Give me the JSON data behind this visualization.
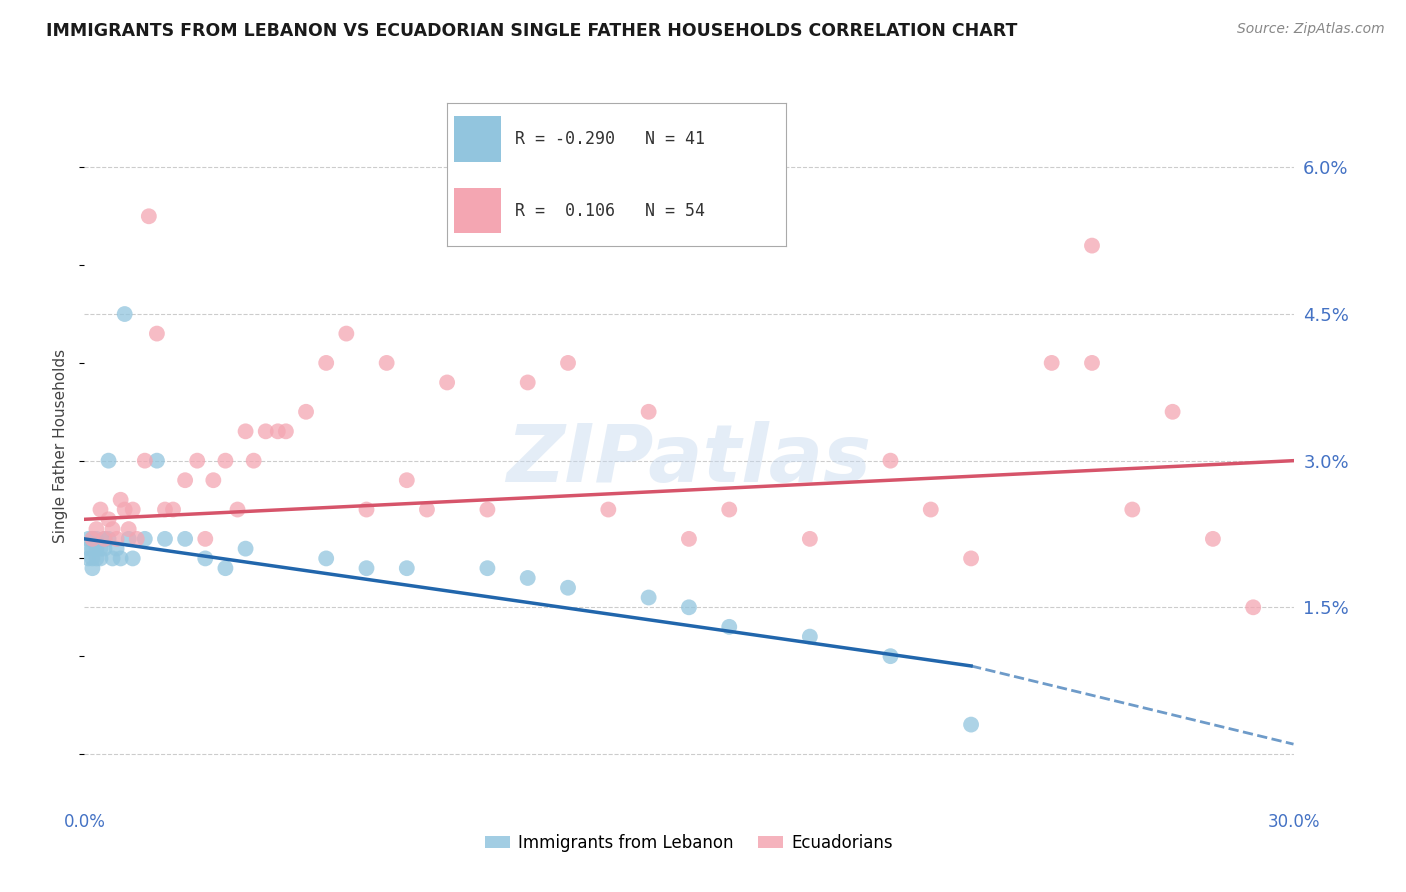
{
  "title": "IMMIGRANTS FROM LEBANON VS ECUADORIAN SINGLE FATHER HOUSEHOLDS CORRELATION CHART",
  "source": "Source: ZipAtlas.com",
  "ylabel": "Single Father Households",
  "xlim": [
    0.0,
    0.3
  ],
  "ylim": [
    -0.005,
    0.068
  ],
  "yticks": [
    0.0,
    0.015,
    0.03,
    0.045,
    0.06
  ],
  "ytick_labels": [
    "",
    "1.5%",
    "3.0%",
    "4.5%",
    "6.0%"
  ],
  "xtick_positions": [
    0.0,
    0.3
  ],
  "xtick_labels": [
    "0.0%",
    "30.0%"
  ],
  "R_lebanon": -0.29,
  "N_lebanon": 41,
  "R_ecuadorian": 0.106,
  "N_ecuadorian": 54,
  "color_lebanon": "#92c5de",
  "color_ecuadorian": "#f4a6b2",
  "trend_lebanon": "#2166ac",
  "trend_ecuadorian": "#d6546a",
  "legend_blue_label": "Immigrants from Lebanon",
  "legend_pink_label": "Ecuadorians",
  "lb_trend_start_x": 0.0,
  "lb_trend_start_y": 0.022,
  "lb_trend_end_x": 0.22,
  "lb_trend_end_y": 0.009,
  "lb_trend_dashed_end_x": 0.3,
  "lb_trend_dashed_end_y": 0.001,
  "ec_trend_start_x": 0.0,
  "ec_trend_start_y": 0.024,
  "ec_trend_end_x": 0.3,
  "ec_trend_end_y": 0.03,
  "scatter_lebanon_x": [
    0.001,
    0.001,
    0.001,
    0.002,
    0.002,
    0.002,
    0.002,
    0.003,
    0.003,
    0.003,
    0.004,
    0.004,
    0.005,
    0.005,
    0.006,
    0.006,
    0.007,
    0.008,
    0.009,
    0.01,
    0.011,
    0.012,
    0.015,
    0.018,
    0.02,
    0.025,
    0.03,
    0.035,
    0.04,
    0.06,
    0.07,
    0.08,
    0.1,
    0.11,
    0.12,
    0.14,
    0.15,
    0.16,
    0.18,
    0.2,
    0.22
  ],
  "scatter_lebanon_y": [
    0.022,
    0.021,
    0.02,
    0.022,
    0.021,
    0.02,
    0.019,
    0.022,
    0.021,
    0.02,
    0.021,
    0.02,
    0.022,
    0.021,
    0.03,
    0.022,
    0.02,
    0.021,
    0.02,
    0.045,
    0.022,
    0.02,
    0.022,
    0.03,
    0.022,
    0.022,
    0.02,
    0.019,
    0.021,
    0.02,
    0.019,
    0.019,
    0.019,
    0.018,
    0.017,
    0.016,
    0.015,
    0.013,
    0.012,
    0.01,
    0.003
  ],
  "scatter_ecuadorian_x": [
    0.002,
    0.003,
    0.004,
    0.005,
    0.006,
    0.007,
    0.008,
    0.009,
    0.01,
    0.011,
    0.012,
    0.013,
    0.015,
    0.016,
    0.018,
    0.02,
    0.022,
    0.025,
    0.028,
    0.03,
    0.032,
    0.035,
    0.038,
    0.04,
    0.042,
    0.045,
    0.048,
    0.05,
    0.055,
    0.06,
    0.065,
    0.07,
    0.075,
    0.08,
    0.085,
    0.09,
    0.1,
    0.11,
    0.12,
    0.13,
    0.14,
    0.15,
    0.16,
    0.18,
    0.2,
    0.21,
    0.22,
    0.24,
    0.25,
    0.26,
    0.27,
    0.28,
    0.29,
    0.25
  ],
  "scatter_ecuadorian_y": [
    0.022,
    0.023,
    0.025,
    0.022,
    0.024,
    0.023,
    0.022,
    0.026,
    0.025,
    0.023,
    0.025,
    0.022,
    0.03,
    0.055,
    0.043,
    0.025,
    0.025,
    0.028,
    0.03,
    0.022,
    0.028,
    0.03,
    0.025,
    0.033,
    0.03,
    0.033,
    0.033,
    0.033,
    0.035,
    0.04,
    0.043,
    0.025,
    0.04,
    0.028,
    0.025,
    0.038,
    0.025,
    0.038,
    0.04,
    0.025,
    0.035,
    0.022,
    0.025,
    0.022,
    0.03,
    0.025,
    0.02,
    0.04,
    0.052,
    0.025,
    0.035,
    0.022,
    0.015,
    0.04
  ],
  "watermark": "ZIPatlas",
  "background_color": "#ffffff",
  "grid_color": "#cccccc",
  "tick_color": "#4472c4"
}
